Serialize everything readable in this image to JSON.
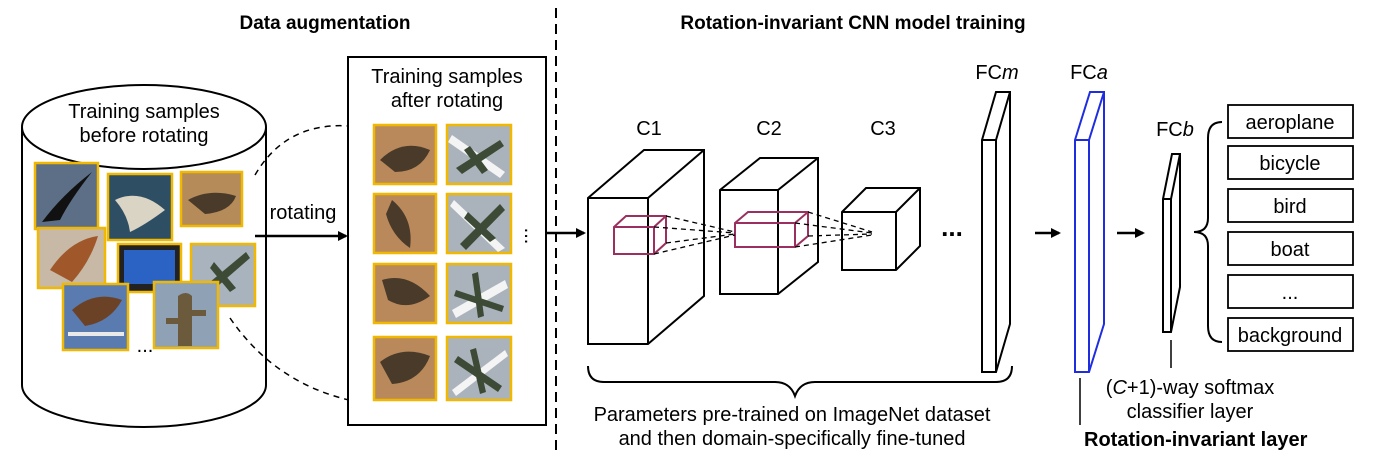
{
  "headers": {
    "data_augmentation": "Data augmentation",
    "cnn_training": "Rotation-invariant CNN model training"
  },
  "cylinder": {
    "label_line1": "Training samples",
    "label_line2": "before rotating",
    "ellipsis": "..."
  },
  "rotating_label": "rotating",
  "rotated_panel": {
    "title_line1": "Training samples",
    "title_line2": "after rotating",
    "ellipsis": "..."
  },
  "layers": {
    "c1": "C1",
    "c2": "C2",
    "c3": "C3",
    "ellipsis": "...",
    "fcm_prefix": "FC",
    "fcm_suffix": "m",
    "fca_prefix": "FC",
    "fca_suffix": "a",
    "fcb_prefix": "FC",
    "fcb_suffix": "b"
  },
  "classes": [
    "aeroplane",
    "bicycle",
    "bird",
    "boat",
    "...",
    "background"
  ],
  "annotations": {
    "pretrained_line1": "Parameters pre-trained on ImageNet dataset",
    "pretrained_line2": "and then domain-specifically fine-tuned",
    "softmax_prefix": "(",
    "softmax_var": "C",
    "softmax_rest": "+1)-way softmax",
    "softmax_line2": "classifier layer",
    "rotation_invariant_layer": "Rotation-invariant layer"
  },
  "colors": {
    "photo_border": "#f0b800",
    "fca_outline": "#1f2de0",
    "kernel_outline": "#9b3060",
    "line": "#000000"
  },
  "icons": {
    "thumbnails_before": [
      "bird-photo",
      "seagull-photo",
      "cat-photo",
      "dog-photo",
      "tv-photo",
      "airplane-photo",
      "horse-jump-photo",
      "cactus-photo"
    ],
    "thumbnails_after": [
      "rotated-cat-photo",
      "rotated-airplane-photo"
    ]
  }
}
